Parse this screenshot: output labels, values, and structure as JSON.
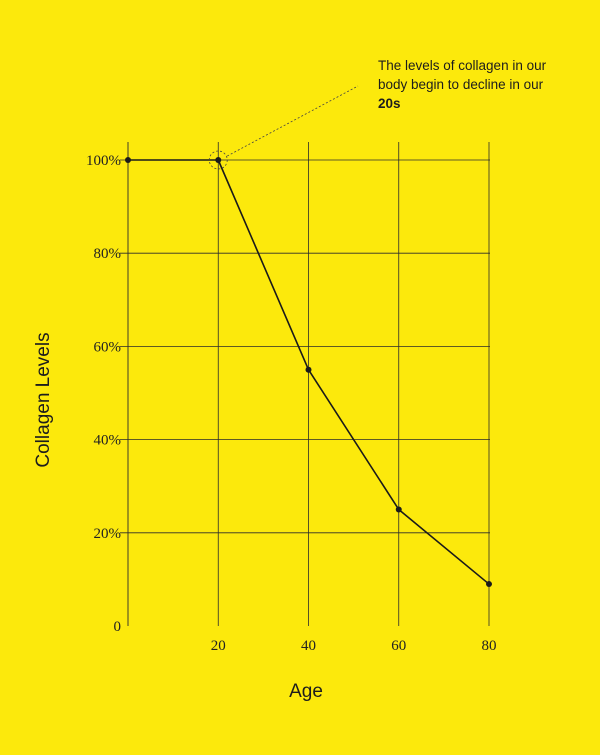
{
  "colors": {
    "background": "#FCE90C",
    "grid": "#2b2b2b",
    "line": "#1a1a1a"
  },
  "annotation": {
    "text": "The levels of collagen in our body begin to decline in our",
    "emphasis": "20s"
  },
  "chart_data": {
    "type": "line",
    "xlabel": "Age",
    "ylabel": "Collagen Levels",
    "xlim": [
      0,
      80
    ],
    "ylim": [
      0,
      100
    ],
    "x_ticks": [
      20,
      40,
      60,
      80
    ],
    "y_ticks": [
      0,
      20,
      40,
      60,
      80,
      100
    ],
    "y_tick_labels": [
      "0",
      "20%",
      "40%",
      "60%",
      "80%",
      "100%"
    ],
    "grid": true,
    "highlight_x": 20,
    "series": [
      {
        "x": [
          0,
          20,
          40,
          60,
          80
        ],
        "y": [
          100,
          100,
          55,
          25,
          9
        ]
      }
    ]
  }
}
